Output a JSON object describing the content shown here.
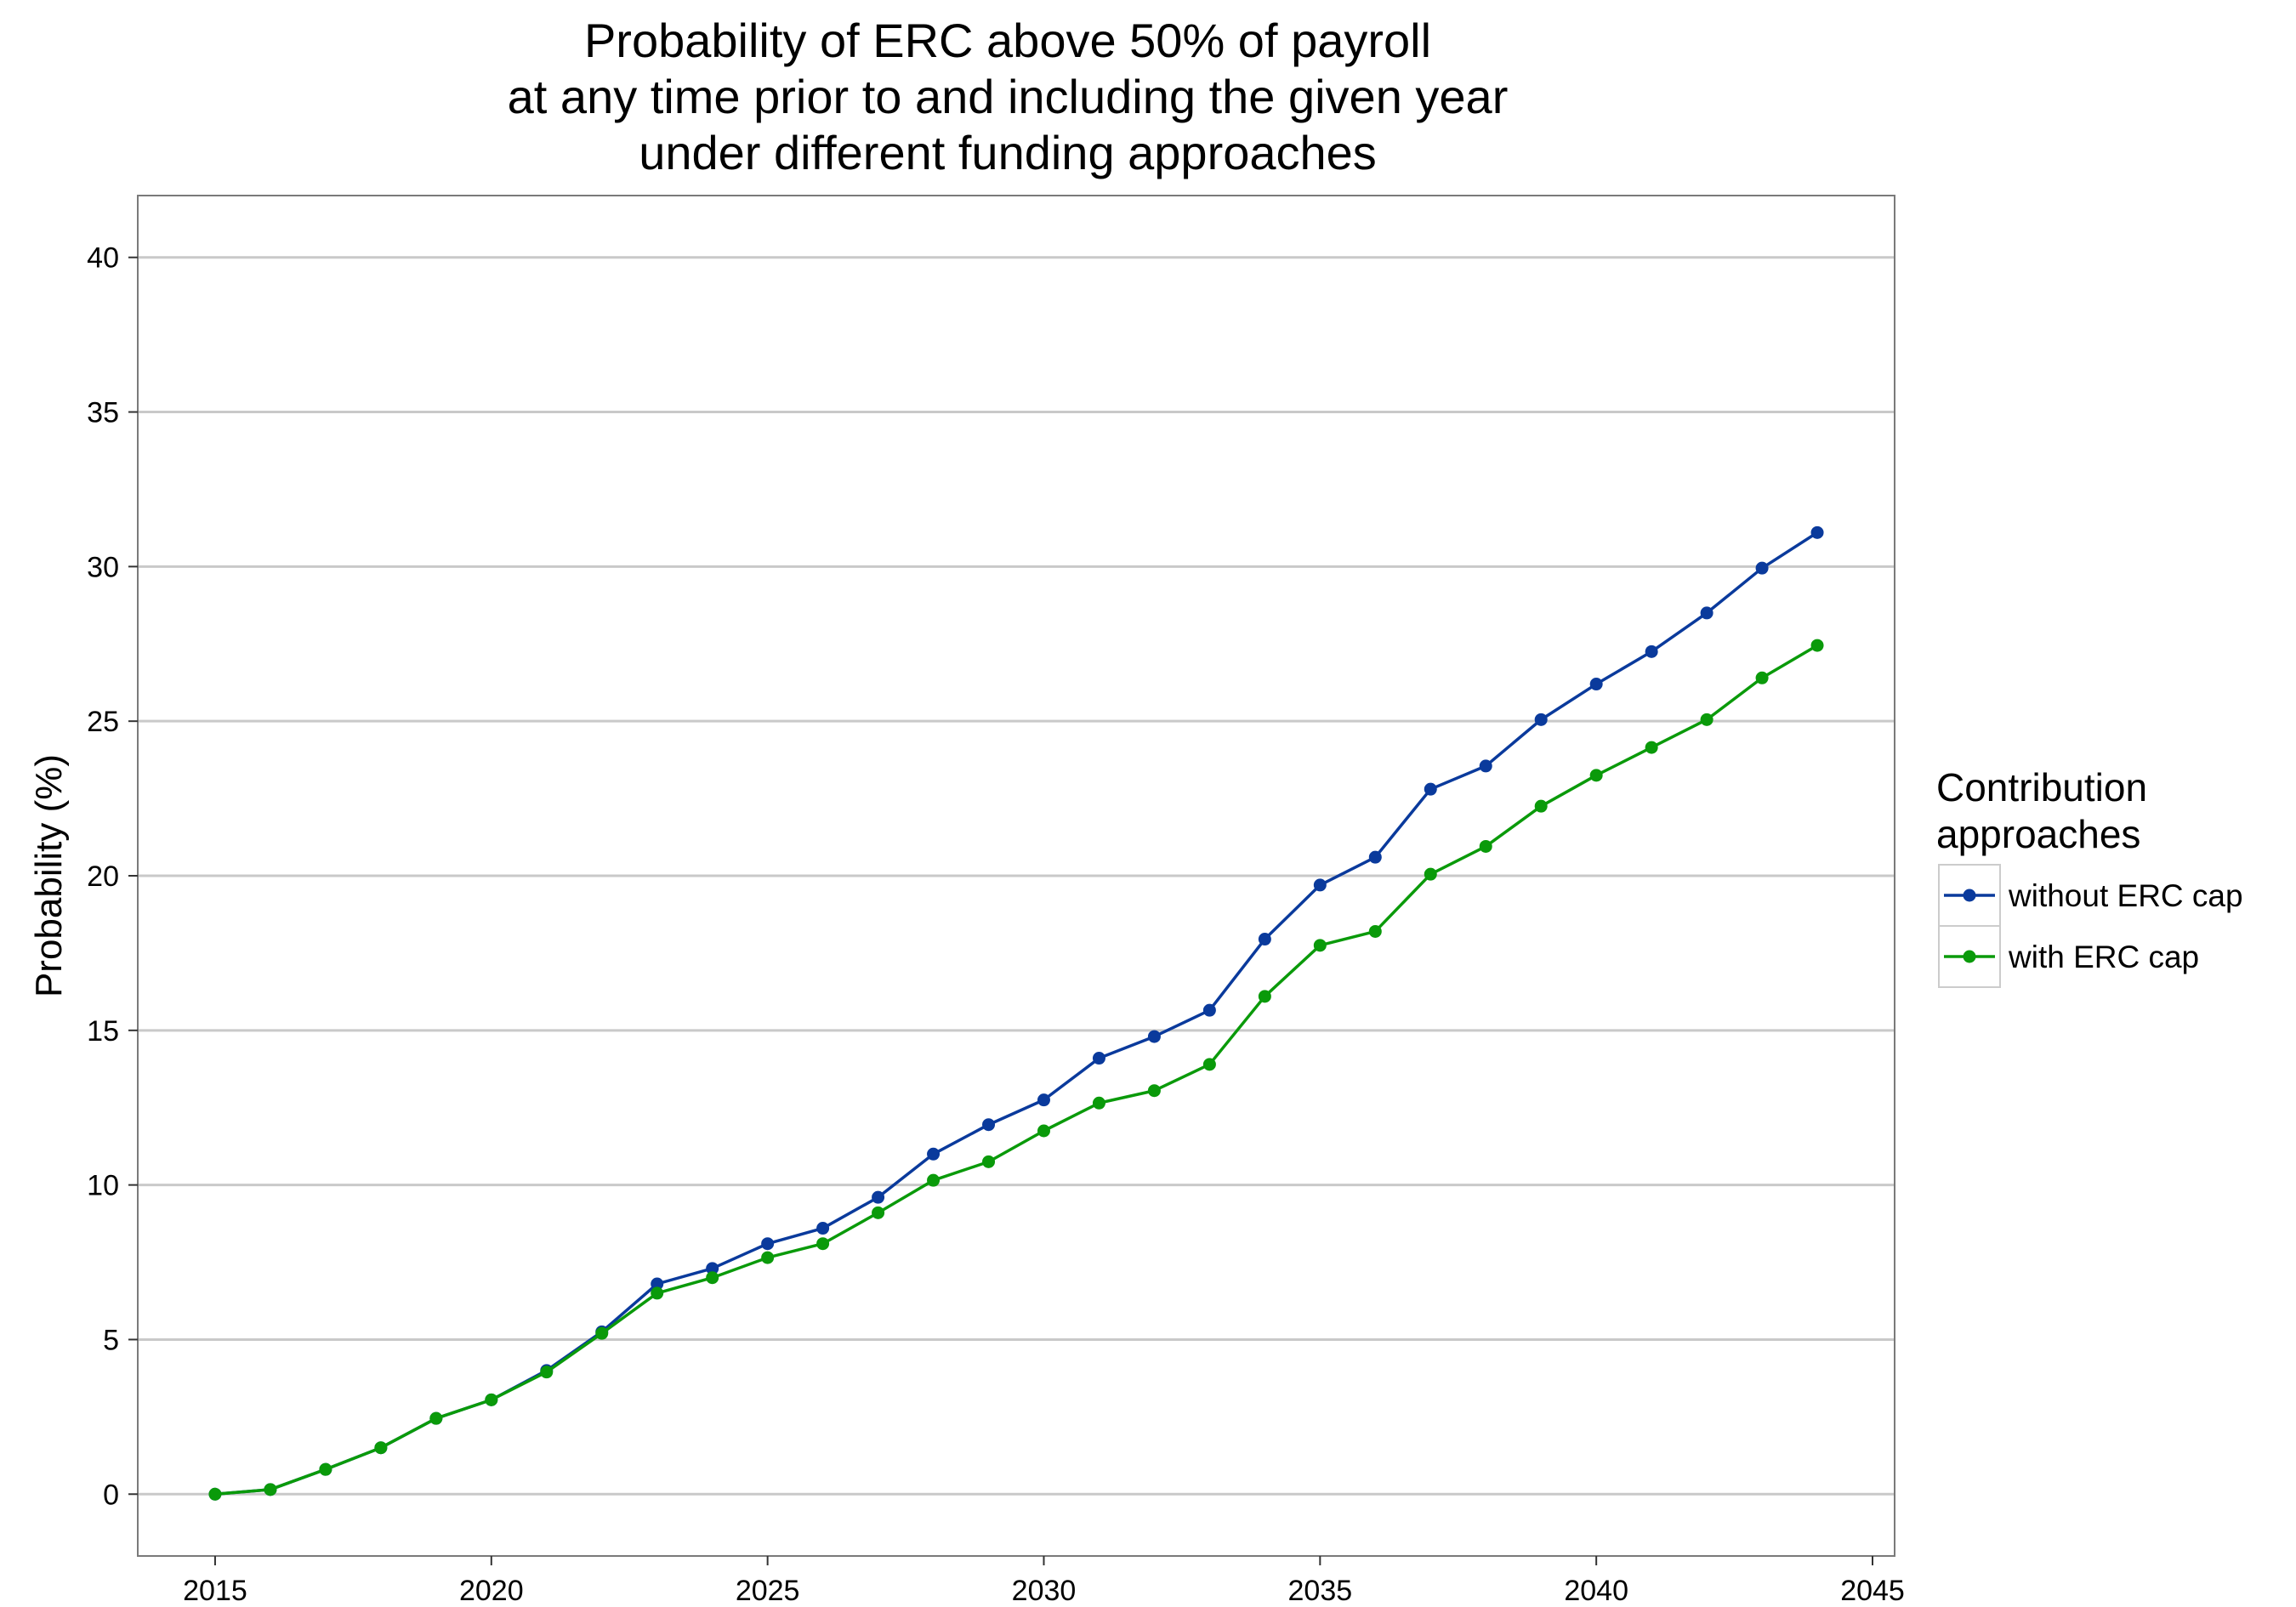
{
  "chart_data": {
    "type": "line",
    "title_lines": [
      "Probability of ERC above 50% of payroll",
      "at any time prior to and including the given year",
      "under different funding approaches"
    ],
    "xlabel": "",
    "ylabel": "Probability (%)",
    "xlim": [
      2013.6,
      2045.4
    ],
    "ylim": [
      -2,
      42
    ],
    "x_ticks": [
      2015,
      2020,
      2025,
      2030,
      2035,
      2040,
      2045
    ],
    "y_ticks": [
      0,
      5,
      10,
      15,
      20,
      25,
      30,
      35,
      40
    ],
    "grid": "horizontal major",
    "legend": {
      "title_lines": [
        "Contribution",
        "approaches"
      ],
      "placement": "right"
    },
    "x": [
      2015,
      2016,
      2017,
      2018,
      2019,
      2020,
      2021,
      2022,
      2023,
      2024,
      2025,
      2026,
      2027,
      2028,
      2029,
      2030,
      2031,
      2032,
      2033,
      2034,
      2035,
      2036,
      2037,
      2038,
      2039,
      2040,
      2041,
      2042,
      2043,
      2044
    ],
    "series": [
      {
        "name": "without ERC cap",
        "color": "#0a3a9c",
        "values": [
          0,
          0.15,
          0.8,
          1.5,
          2.45,
          3.05,
          4.0,
          5.25,
          6.8,
          7.3,
          8.1,
          8.6,
          9.6,
          11.0,
          11.95,
          12.75,
          14.1,
          14.8,
          15.65,
          17.95,
          19.7,
          20.6,
          22.8,
          23.55,
          25.05,
          26.2,
          27.25,
          28.5,
          29.95,
          31.1
        ]
      },
      {
        "name": "with ERC cap",
        "color": "#0a9a0a",
        "values": [
          0,
          0.15,
          0.8,
          1.5,
          2.45,
          3.05,
          3.95,
          5.2,
          6.5,
          7.0,
          7.65,
          8.1,
          9.1,
          10.15,
          10.75,
          11.75,
          12.65,
          13.05,
          13.9,
          16.1,
          17.75,
          18.2,
          20.05,
          20.95,
          22.25,
          23.25,
          24.15,
          25.05,
          26.4,
          27.45
        ]
      }
    ]
  }
}
